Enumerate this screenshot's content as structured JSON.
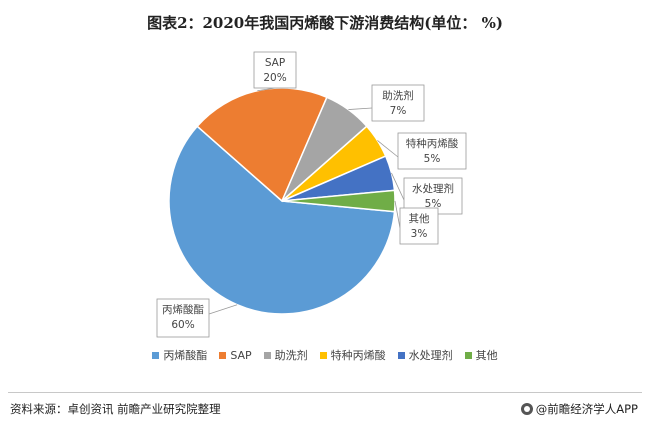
{
  "header": {
    "title": "图表2：2020年我国丙烯酸下游消费结构(单位： %)"
  },
  "chart_data": {
    "type": "pie",
    "title": "图表2：2020年我国丙烯酸下游消费结构(单位： %)",
    "slices": [
      {
        "name": "丙烯酸酯",
        "value": 60,
        "label_value": "60%",
        "color": "#5b9bd5"
      },
      {
        "name": "SAP",
        "value": 20,
        "label_value": "20%",
        "color": "#ed7d31"
      },
      {
        "name": "助洗剂",
        "value": 7,
        "label_value": "7%",
        "color": "#a5a5a5"
      },
      {
        "name": "特种丙烯酸",
        "value": 5,
        "label_value": "5%",
        "color": "#ffc000"
      },
      {
        "name": "水处理剂",
        "value": 5,
        "label_value": "5%",
        "color": "#4472c4"
      },
      {
        "name": "其他",
        "value": 3,
        "label_value": "3%",
        "color": "#70ad47"
      }
    ],
    "legend_position": "bottom"
  },
  "footer": {
    "source": "资料来源：卓创资讯 前瞻产业研究院整理",
    "brand": "@前瞻经济学人APP"
  }
}
